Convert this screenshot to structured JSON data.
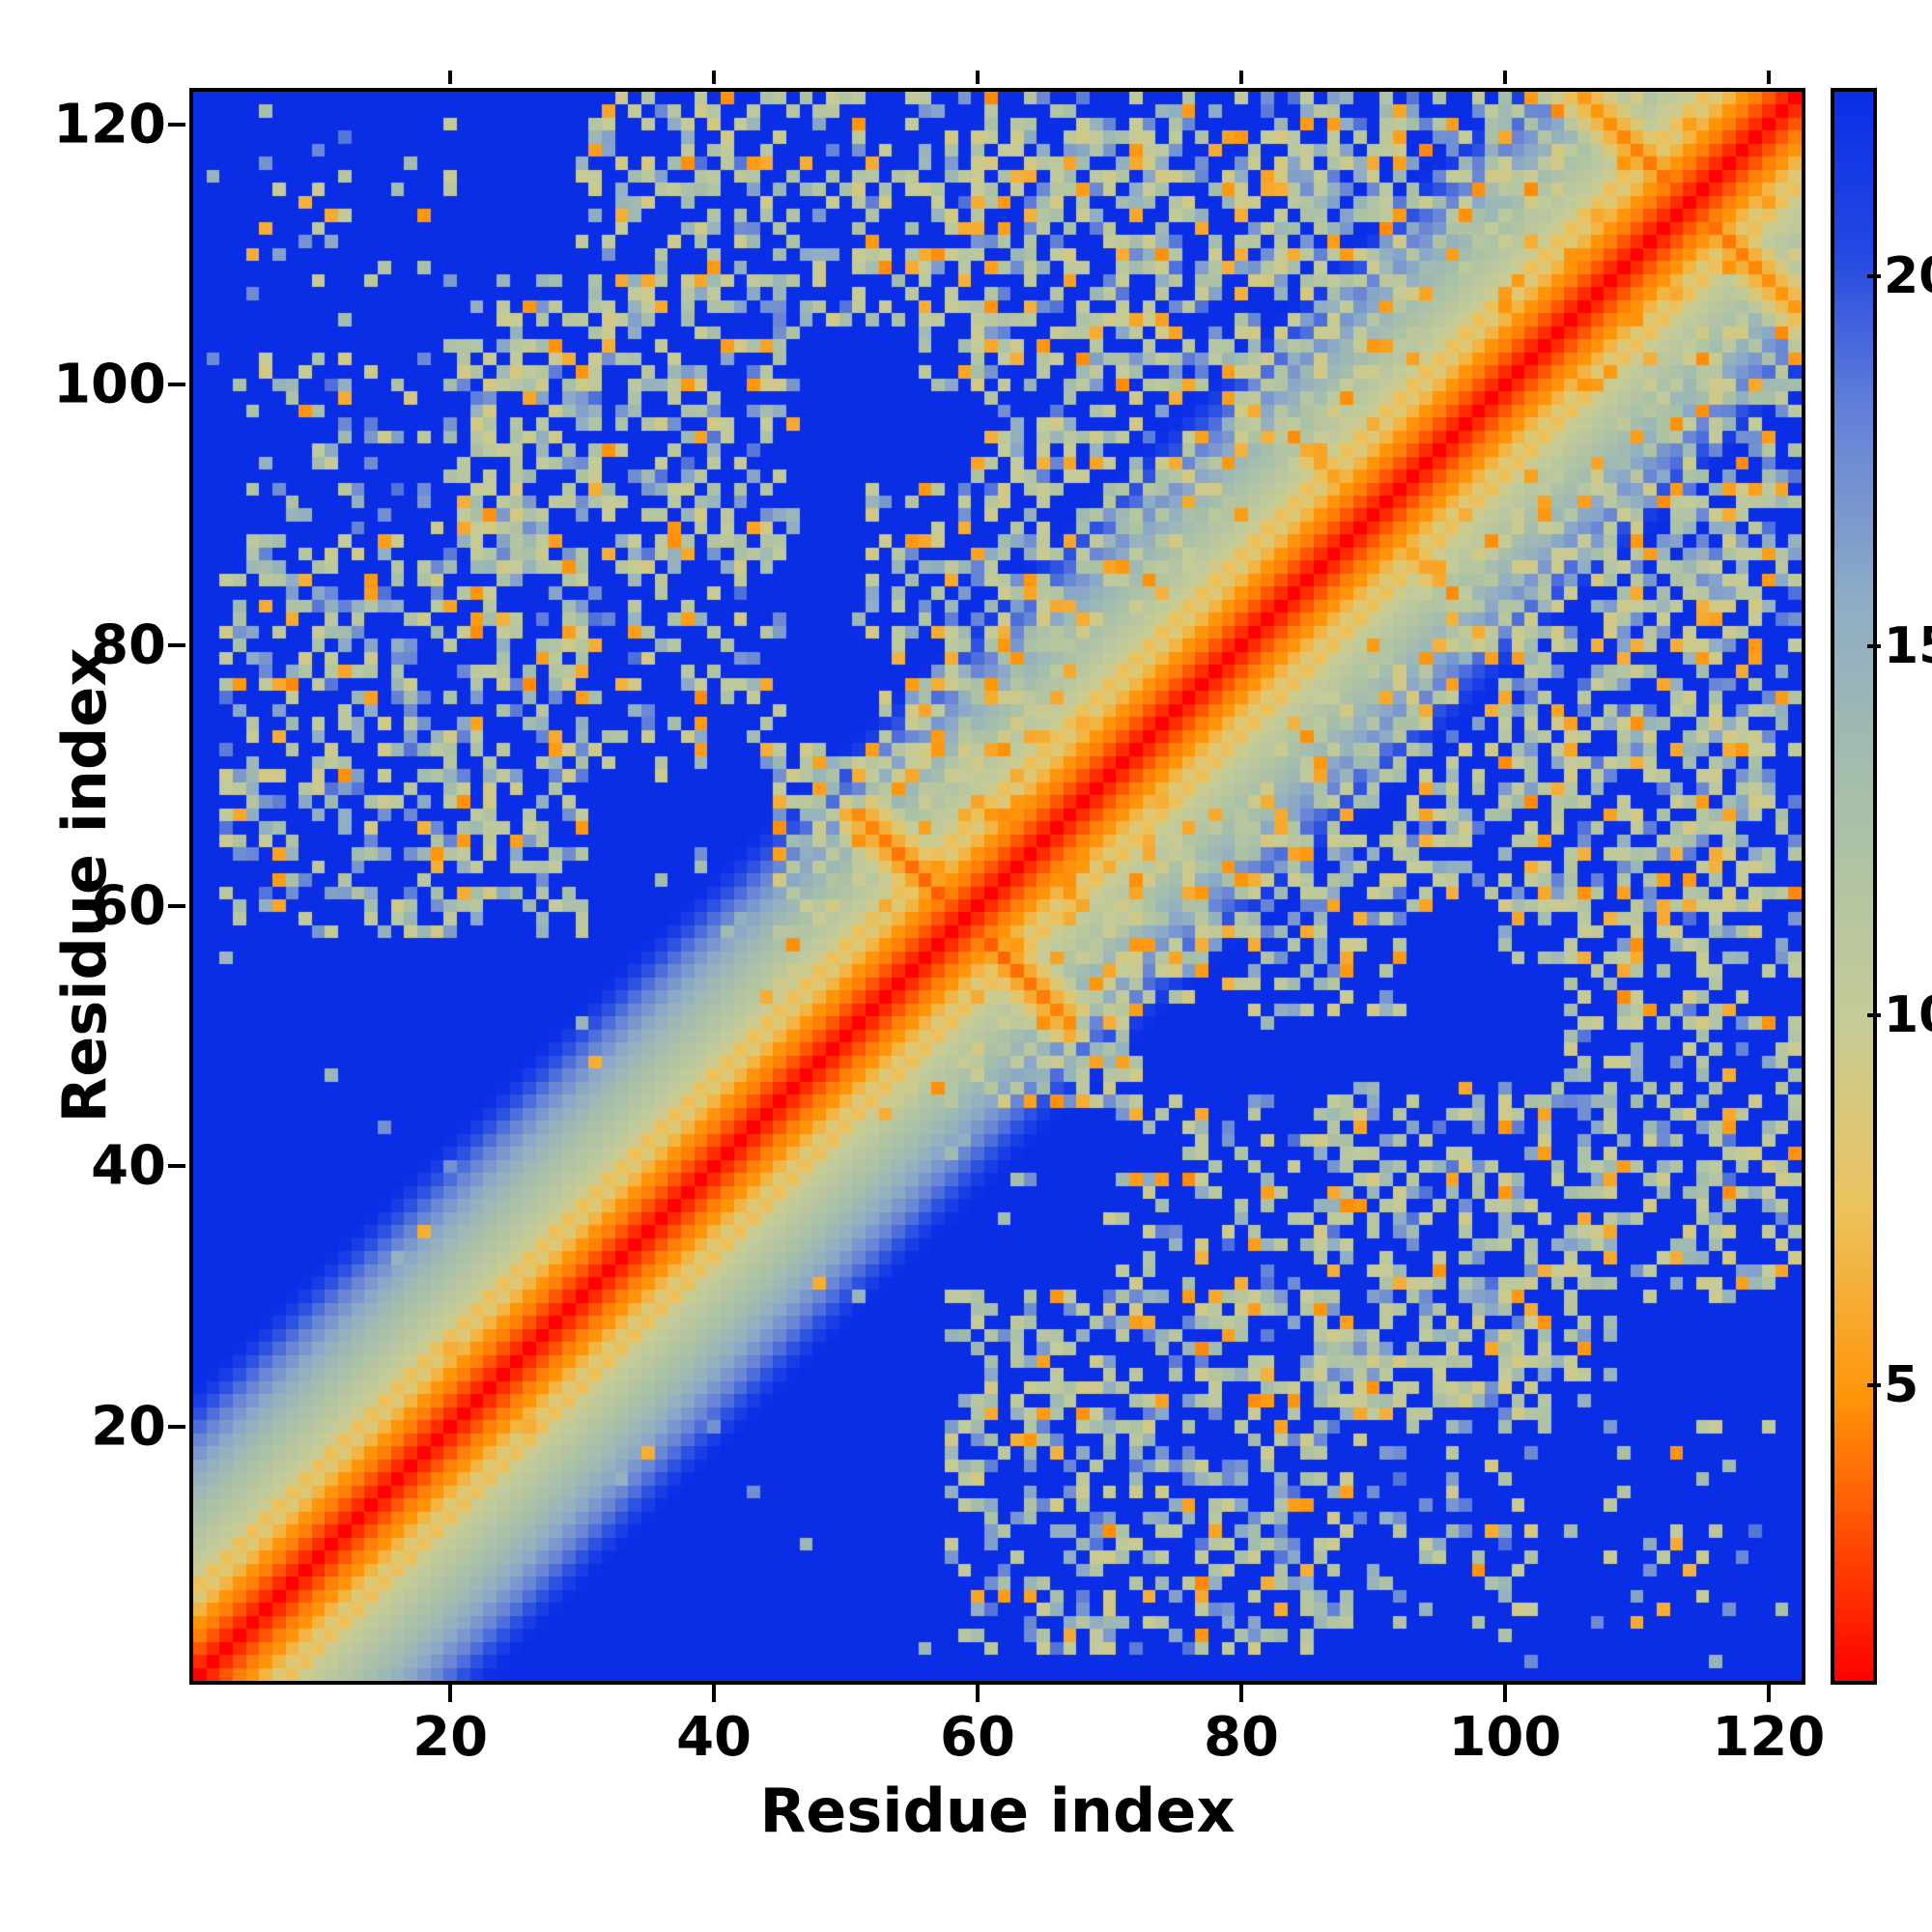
{
  "chart_data": {
    "type": "heatmap",
    "title": "",
    "xlabel": "Residue index",
    "ylabel": "Residue index",
    "x_range": [
      1,
      122
    ],
    "y_range": [
      1,
      122
    ],
    "x_ticks": [
      20,
      40,
      60,
      80,
      100,
      120
    ],
    "y_ticks": [
      20,
      40,
      60,
      80,
      100,
      120
    ],
    "grid": false,
    "legend_position": "colorbar-right",
    "colorbar": {
      "min": 1,
      "max": 22.5,
      "ticks": [
        5,
        10,
        15,
        20
      ],
      "low_color_meaning": "short residue-residue distance (red)",
      "high_color_meaning": "long residue-residue distance (blue)"
    },
    "colormap": {
      "name": "jet-reversed",
      "stops": [
        [
          0.0,
          255,
          0,
          0
        ],
        [
          0.07,
          255,
          60,
          0
        ],
        [
          0.18,
          255,
          150,
          10
        ],
        [
          0.3,
          235,
          195,
          95
        ],
        [
          0.42,
          196,
          203,
          152
        ],
        [
          0.55,
          168,
          192,
          168
        ],
        [
          0.68,
          142,
          172,
          198
        ],
        [
          0.8,
          98,
          128,
          215
        ],
        [
          0.9,
          35,
          72,
          226
        ],
        [
          1.0,
          10,
          45,
          230
        ]
      ]
    },
    "matrix_model": {
      "description": "Symmetric 122x122 residue distance map: red diagonal band with helical stripes, blue far-field, speckled off-diagonal contact clusters and anti-diagonal hairpins",
      "n": 122,
      "cap": 22.5,
      "band_profile": [
        1,
        2.1,
        3.2,
        4.3,
        4.8,
        6.6,
        8.4,
        7.3,
        9.6,
        10.3,
        11.0,
        11.7,
        12.4,
        13.2,
        14.0,
        14.9,
        15.8,
        16.8,
        17.8,
        18.9,
        20.0,
        21.2,
        22.3
      ],
      "clusters": [
        {
          "i": [
            3,
            30
          ],
          "j": [
            58,
            86
          ],
          "density": 0.42
        },
        {
          "i": [
            5,
            30
          ],
          "j": [
            86,
            102
          ],
          "density": 0.22
        },
        {
          "i": [
            20,
            46
          ],
          "j": [
            86,
            108
          ],
          "density": 0.42
        },
        {
          "i": [
            30,
            60
          ],
          "j": [
            105,
            122
          ],
          "density": 0.35
        },
        {
          "i": [
            45,
            64
          ],
          "j": [
            48,
            72
          ],
          "density": 0.65
        },
        {
          "i": [
            52,
            72
          ],
          "j": [
            62,
            92
          ],
          "density": 0.4
        },
        {
          "i": [
            28,
            45
          ],
          "j": [
            70,
            88
          ],
          "density": 0.3
        },
        {
          "i": [
            62,
            80
          ],
          "j": [
            80,
            96
          ],
          "density": 0.35
        },
        {
          "i": [
            60,
            92
          ],
          "j": [
            94,
            120
          ],
          "density": 0.38
        },
        {
          "i": [
            80,
            102
          ],
          "j": [
            96,
            122
          ],
          "density": 0.45
        },
        {
          "i": [
            99,
            122
          ],
          "j": [
            101,
            122
          ],
          "density": 0.6
        },
        {
          "i": [
            55,
            80
          ],
          "j": [
            100,
            122
          ],
          "density": 0.25
        },
        {
          "i": [
            5,
            20
          ],
          "j": [
            108,
            122
          ],
          "density": 0.1
        }
      ],
      "hairpins": [
        {
          "center": 118,
          "span": 16,
          "width": 3,
          "value": 3.0
        },
        {
          "center": 180,
          "span": 10,
          "width": 2,
          "value": 5.0
        },
        {
          "center": 228,
          "span": 18,
          "width": 3,
          "value": 3.5
        }
      ],
      "noise": {
        "stray_light_prob": 0.01,
        "stray_orange_prob": 0.0025
      }
    }
  },
  "geometry_values": {
    "note": "axis tick values rendered from chart_data ticks"
  }
}
